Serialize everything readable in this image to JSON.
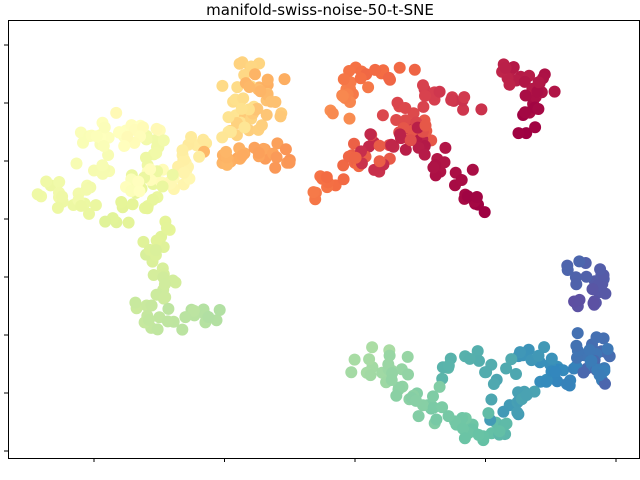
{
  "chart_data": {
    "type": "scatter",
    "title": "manifold-swiss-noise-50-t-SNE",
    "xlabel": "",
    "ylabel": "",
    "xlim": [
      0,
      100
    ],
    "ylim": [
      0,
      100
    ],
    "grid": false,
    "legend": "none",
    "x_tick_labels": [
      "",
      "",
      "",
      "",
      ""
    ],
    "y_tick_labels": [
      "",
      "",
      "",
      "",
      "",
      "",
      "",
      ""
    ],
    "colormap": "Spectral",
    "colormap_stops": [
      "#9e0142",
      "#d53e4f",
      "#f46d43",
      "#fdae61",
      "#fee08b",
      "#ffffbf",
      "#e6f598",
      "#abdda4",
      "#66c2a5",
      "#3288bd",
      "#5e4fa2"
    ],
    "clusters": [
      {
        "segment": [
          [
            82.6,
            75.5
          ],
          [
            83.2,
            79.5
          ],
          [
            83.7,
            85.0
          ],
          [
            80.0,
            88.8
          ],
          [
            77.2,
            86.4
          ]
        ],
        "t": [
          0.0,
          0.06
        ],
        "n": 34,
        "spread": 1.5
      },
      {
        "segment": [
          [
            76.2,
            56.6
          ],
          [
            72.7,
            61.4
          ],
          [
            69.3,
            65.4
          ],
          [
            63.6,
            74.6
          ],
          [
            58.0,
            71.3
          ],
          [
            55.8,
            66.8
          ]
        ],
        "t": [
          0.0,
          0.08
        ],
        "n": 40,
        "spread": 1.3
      },
      {
        "segment": [
          [
            73.4,
            79.6
          ],
          [
            70.0,
            83.1
          ],
          [
            64.3,
            81.4
          ],
          [
            61.7,
            77.8
          ],
          [
            61.4,
            72.3
          ],
          [
            67.0,
            76.5
          ]
        ],
        "t": [
          0.08,
          0.16
        ],
        "n": 38,
        "spread": 1.6
      },
      {
        "segment": [
          [
            59.7,
            69.2
          ],
          [
            55.5,
            69.6
          ],
          [
            52.4,
            64.7
          ],
          [
            50.1,
            62.1
          ],
          [
            48.8,
            60.1
          ]
        ],
        "t": [
          0.16,
          0.22
        ],
        "n": 22,
        "spread": 1.2
      },
      {
        "segment": [
          [
            63.0,
            87.3
          ],
          [
            59.5,
            88.5
          ],
          [
            56.1,
            88.8
          ],
          [
            53.8,
            83.6
          ],
          [
            51.9,
            78.5
          ]
        ],
        "t": [
          0.18,
          0.25
        ],
        "n": 26,
        "spread": 1.3
      },
      {
        "segment": [
          [
            44.9,
            68.9
          ],
          [
            41.7,
            69.2
          ],
          [
            37.3,
            70.1
          ],
          [
            32.8,
            68.6
          ]
        ],
        "t": [
          0.26,
          0.32
        ],
        "n": 28,
        "spread": 1.3
      },
      {
        "segment": [
          [
            42.3,
            86.9
          ],
          [
            39.7,
            87.2
          ],
          [
            41.2,
            82.7
          ],
          [
            40.3,
            77.2
          ],
          [
            36.9,
            74.5
          ]
        ],
        "t": [
          0.3,
          0.38
        ],
        "n": 30,
        "spread": 1.5
      },
      {
        "segment": [
          [
            35.7,
            89.6
          ],
          [
            37.6,
            90.2
          ],
          [
            35.4,
            84.9
          ],
          [
            36.8,
            79.6
          ],
          [
            32.8,
            74.1
          ],
          [
            26.9,
            67.7
          ]
        ],
        "t": [
          0.37,
          0.45
        ],
        "n": 34,
        "spread": 1.3
      },
      {
        "segment": [
          [
            28.4,
            66.6
          ],
          [
            26.1,
            62.6
          ],
          [
            22.7,
            64.6
          ],
          [
            20.4,
            62.9
          ],
          [
            19.4,
            61.7
          ]
        ],
        "t": [
          0.45,
          0.52
        ],
        "n": 26,
        "spread": 1.3
      },
      {
        "segment": [
          [
            21.1,
            76.5
          ],
          [
            19.7,
            73.1
          ],
          [
            16.3,
            75.4
          ],
          [
            13.4,
            73.3
          ],
          [
            12.8,
            70.4
          ]
        ],
        "t": [
          0.48,
          0.53
        ],
        "n": 28,
        "spread": 1.5
      },
      {
        "segment": [
          [
            16.4,
            67.4
          ],
          [
            12.7,
            62.7
          ],
          [
            9.1,
            61.3
          ],
          [
            5.8,
            61.8
          ],
          [
            8.8,
            58.1
          ],
          [
            12.5,
            56.9
          ]
        ],
        "t": [
          0.53,
          0.58
        ],
        "n": 28,
        "spread": 1.3
      },
      {
        "segment": [
          [
            22.9,
            73.9
          ],
          [
            23.8,
            70.6
          ],
          [
            22.1,
            67.8
          ],
          [
            23.0,
            62.5
          ],
          [
            20.3,
            57.0
          ],
          [
            18.5,
            55.2
          ],
          [
            16.4,
            54.5
          ]
        ],
        "t": [
          0.55,
          0.61
        ],
        "n": 32,
        "spread": 1.4
      },
      {
        "segment": [
          [
            25.3,
            53.2
          ],
          [
            24.3,
            50.9
          ],
          [
            24.3,
            48.4
          ],
          [
            23.0,
            45.3
          ],
          [
            23.2,
            41.0
          ],
          [
            22.6,
            38.4
          ]
        ],
        "t": [
          0.6,
          0.64
        ],
        "n": 20,
        "spread": 1.2
      },
      {
        "segment": [
          [
            25.2,
            36.5
          ],
          [
            22.9,
            35.7
          ],
          [
            21.0,
            34.7
          ],
          [
            23.6,
            31.6
          ],
          [
            27.8,
            32.6
          ],
          [
            31.3,
            33.1
          ],
          [
            33.3,
            32.4
          ]
        ],
        "t": [
          0.64,
          0.69
        ],
        "n": 28,
        "spread": 1.2
      },
      {
        "segment": [
          [
            56.7,
            24.2
          ],
          [
            56.1,
            20.1
          ],
          [
            59.3,
            18.2
          ],
          [
            60.8,
            21.5
          ],
          [
            61.8,
            16.9
          ],
          [
            64.0,
            14.7
          ],
          [
            65.8,
            9.4
          ]
        ],
        "t": [
          0.7,
          0.76
        ],
        "n": 32,
        "spread": 1.3
      },
      {
        "segment": [
          [
            67.2,
            14.1
          ],
          [
            67.8,
            10.4
          ],
          [
            70.3,
            7.8
          ],
          [
            72.6,
            6.3
          ],
          [
            75.9,
            5.3
          ],
          [
            77.6,
            8.2
          ],
          [
            79.8,
            6.8
          ]
        ],
        "t": [
          0.76,
          0.82
        ],
        "n": 30,
        "spread": 1.2
      },
      {
        "segment": [
          [
            68.8,
            20.4
          ],
          [
            71.3,
            23.0
          ],
          [
            74.5,
            21.4
          ],
          [
            77.7,
            20.5
          ],
          [
            78.2,
            16.1
          ],
          [
            81.8,
            14.0
          ],
          [
            80.1,
            9.9
          ],
          [
            77.7,
            11.2
          ]
        ],
        "t": [
          0.82,
          0.87
        ],
        "n": 30,
        "spread": 1.3
      },
      {
        "segment": [
          [
            81.8,
            25.3
          ],
          [
            83.5,
            22.7
          ],
          [
            85.4,
            21.6
          ],
          [
            84.4,
            18.2
          ],
          [
            87.2,
            20.3
          ],
          [
            89.8,
            17.1
          ]
        ],
        "t": [
          0.87,
          0.91
        ],
        "n": 24,
        "spread": 1.2
      },
      {
        "segment": [
          [
            90.4,
            21.2
          ],
          [
            94.2,
            18.8
          ],
          [
            93.8,
            25.2
          ],
          [
            92.1,
            22.6
          ],
          [
            90.4,
            26.1
          ],
          [
            94.0,
            27.1
          ],
          [
            93.0,
            17.1
          ]
        ],
        "t": [
          0.91,
          0.96
        ],
        "n": 32,
        "spread": 1.1
      },
      {
        "segment": [
          [
            88.8,
            44.2
          ],
          [
            91.0,
            41.5
          ],
          [
            94.0,
            43.3
          ],
          [
            94.7,
            37.8
          ],
          [
            92.7,
            34.9
          ],
          [
            89.5,
            35.9
          ]
        ],
        "t": [
          0.96,
          1.0
        ],
        "n": 24,
        "spread": 1.1
      }
    ]
  }
}
